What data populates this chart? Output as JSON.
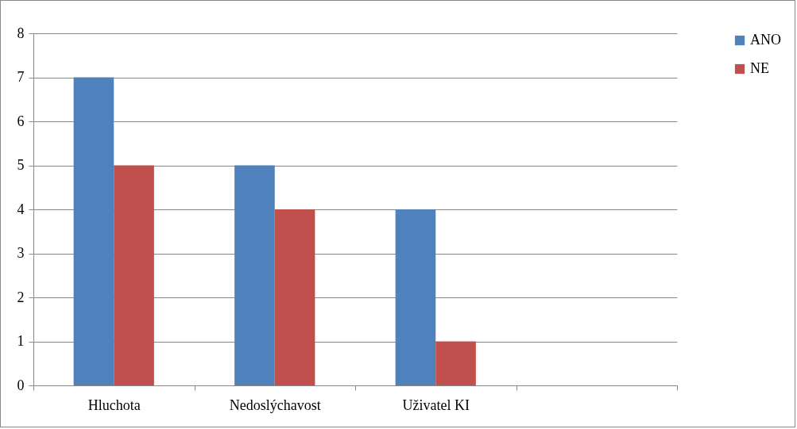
{
  "chart_data": {
    "type": "bar",
    "categories": [
      "Hluchota",
      "Nedoslýchavost",
      "Uživatel KI",
      null
    ],
    "series": [
      {
        "name": "ANO",
        "color": "#4f81bd",
        "values": [
          7,
          5,
          4,
          null
        ]
      },
      {
        "name": "NE",
        "color": "#c0504d",
        "values": [
          5,
          4,
          1,
          null
        ]
      }
    ],
    "ylim": [
      0,
      8
    ],
    "yticks": [
      0,
      1,
      2,
      3,
      4,
      5,
      6,
      7,
      8
    ],
    "grid": "y",
    "legend": "right"
  }
}
